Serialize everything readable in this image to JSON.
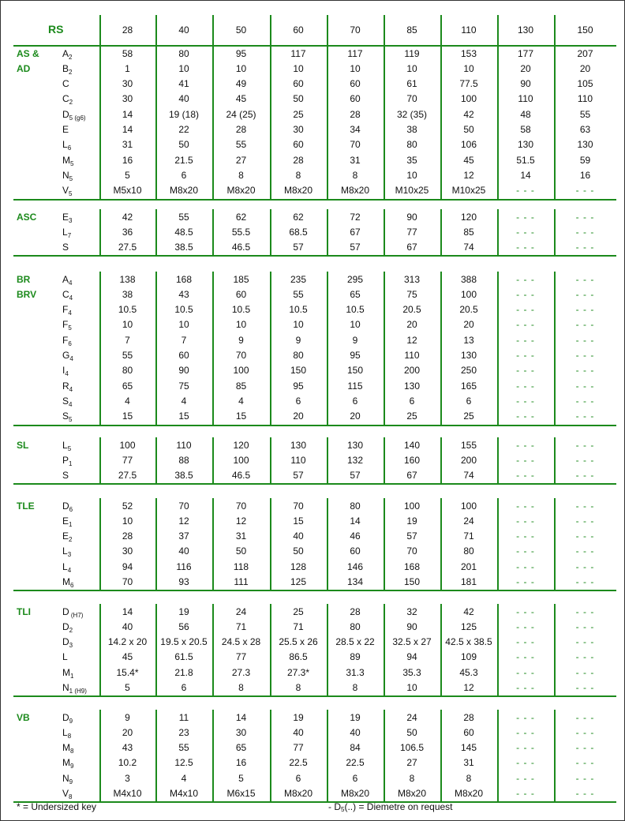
{
  "header": {
    "label": "RS",
    "sizes": [
      "28",
      "40",
      "50",
      "60",
      "70",
      "85",
      "110",
      "130",
      "150"
    ]
  },
  "dash": "- - -",
  "sections": [
    {
      "group": [
        "AS &",
        "AD"
      ],
      "rows": [
        {
          "p": "A",
          "s": "2",
          "v": [
            "58",
            "80",
            "95",
            "117",
            "117",
            "119",
            "153",
            "177",
            "207"
          ]
        },
        {
          "p": "B",
          "s": "2",
          "v": [
            "1",
            "10",
            "10",
            "10",
            "10",
            "10",
            "10",
            "20",
            "20"
          ]
        },
        {
          "p": "C",
          "s": "",
          "v": [
            "30",
            "41",
            "49",
            "60",
            "60",
            "61",
            "77.5",
            "90",
            "105"
          ]
        },
        {
          "p": "C",
          "s": "2",
          "v": [
            "30",
            "40",
            "45",
            "50",
            "60",
            "70",
            "100",
            "110",
            "110"
          ]
        },
        {
          "p": "D",
          "s": "5 (g6)",
          "v": [
            "14",
            "19 (18)",
            "24 (25)",
            "25",
            "28",
            "32 (35)",
            "42",
            "48",
            "55"
          ]
        },
        {
          "p": "E",
          "s": "",
          "v": [
            "14",
            "22",
            "28",
            "30",
            "34",
            "38",
            "50",
            "58",
            "63"
          ]
        },
        {
          "p": "L",
          "s": "6",
          "v": [
            "31",
            "50",
            "55",
            "60",
            "70",
            "80",
            "106",
            "130",
            "130"
          ]
        },
        {
          "p": "M",
          "s": "5",
          "v": [
            "16",
            "21.5",
            "27",
            "28",
            "31",
            "35",
            "45",
            "51.5",
            "59"
          ]
        },
        {
          "p": "N",
          "s": "5",
          "v": [
            "5",
            "6",
            "8",
            "8",
            "8",
            "10",
            "12",
            "14",
            "16"
          ]
        },
        {
          "p": "V",
          "s": "5",
          "v": [
            "M5x10",
            "M8x20",
            "M8x20",
            "M8x20",
            "M8x20",
            "M10x25",
            "M10x25",
            "- - -",
            "- - -"
          ]
        }
      ]
    },
    {
      "group": [
        "ASC"
      ],
      "rows": [
        {
          "p": "E",
          "s": "3",
          "v": [
            "42",
            "55",
            "62",
            "62",
            "72",
            "90",
            "120",
            "- - -",
            "- - -"
          ]
        },
        {
          "p": "L",
          "s": "7",
          "v": [
            "36",
            "48.5",
            "55.5",
            "68.5",
            "67",
            "77",
            "85",
            "- - -",
            "- - -"
          ]
        },
        {
          "p": "S",
          "s": "",
          "v": [
            "27.5",
            "38.5",
            "46.5",
            "57",
            "57",
            "67",
            "74",
            "- - -",
            "- - -"
          ]
        }
      ]
    },
    {
      "group": [
        "BR",
        "BRV"
      ],
      "rows": [
        {
          "p": "A",
          "s": "4",
          "v": [
            "138",
            "168",
            "185",
            "235",
            "295",
            "313",
            "388",
            "- - -",
            "- - -"
          ]
        },
        {
          "p": "C",
          "s": "4",
          "v": [
            "38",
            "43",
            "60",
            "55",
            "65",
            "75",
            "100",
            "- - -",
            "- - -"
          ]
        },
        {
          "p": "F",
          "s": "4",
          "v": [
            "10.5",
            "10.5",
            "10.5",
            "10.5",
            "10.5",
            "20.5",
            "20.5",
            "- - -",
            "- - -"
          ]
        },
        {
          "p": "F",
          "s": "5",
          "v": [
            "10",
            "10",
            "10",
            "10",
            "10",
            "20",
            "20",
            "- - -",
            "- - -"
          ]
        },
        {
          "p": "F",
          "s": "6",
          "v": [
            "7",
            "7",
            "9",
            "9",
            "9",
            "12",
            "13",
            "- - -",
            "- - -"
          ]
        },
        {
          "p": "G",
          "s": "4",
          "v": [
            "55",
            "60",
            "70",
            "80",
            "95",
            "110",
            "130",
            "- - -",
            "- - -"
          ]
        },
        {
          "p": "I",
          "s": "4",
          "v": [
            "80",
            "90",
            "100",
            "150",
            "150",
            "200",
            "250",
            "- - -",
            "- - -"
          ]
        },
        {
          "p": "R",
          "s": "4",
          "v": [
            "65",
            "75",
            "85",
            "95",
            "115",
            "130",
            "165",
            "- - -",
            "- - -"
          ]
        },
        {
          "p": "S",
          "s": "4",
          "v": [
            "4",
            "4",
            "4",
            "6",
            "6",
            "6",
            "6",
            "- - -",
            "- - -"
          ]
        },
        {
          "p": "S",
          "s": "5",
          "v": [
            "15",
            "15",
            "15",
            "20",
            "20",
            "25",
            "25",
            "- - -",
            "- - -"
          ]
        }
      ]
    },
    {
      "group": [
        "SL"
      ],
      "rows": [
        {
          "p": "L",
          "s": "5",
          "v": [
            "100",
            "110",
            "120",
            "130",
            "130",
            "140",
            "155",
            "- - -",
            "- - -"
          ]
        },
        {
          "p": "P",
          "s": "1",
          "v": [
            "77",
            "88",
            "100",
            "110",
            "132",
            "160",
            "200",
            "- - -",
            "- - -"
          ]
        },
        {
          "p": "S",
          "s": "",
          "v": [
            "27.5",
            "38.5",
            "46.5",
            "57",
            "57",
            "67",
            "74",
            "- - -",
            "- - -"
          ]
        }
      ]
    },
    {
      "group": [
        "TLE"
      ],
      "rows": [
        {
          "p": "D",
          "s": "6",
          "v": [
            "52",
            "70",
            "70",
            "70",
            "80",
            "100",
            "100",
            "- - -",
            "- - -"
          ]
        },
        {
          "p": "E",
          "s": "1",
          "v": [
            "10",
            "12",
            "12",
            "15",
            "14",
            "19",
            "24",
            "- - -",
            "- - -"
          ]
        },
        {
          "p": "E",
          "s": "2",
          "v": [
            "28",
            "37",
            "31",
            "40",
            "46",
            "57",
            "71",
            "- - -",
            "- - -"
          ]
        },
        {
          "p": "L",
          "s": "3",
          "v": [
            "30",
            "40",
            "50",
            "50",
            "60",
            "70",
            "80",
            "- - -",
            "- - -"
          ]
        },
        {
          "p": "L",
          "s": "4",
          "v": [
            "94",
            "116",
            "118",
            "128",
            "146",
            "168",
            "201",
            "- - -",
            "- - -"
          ]
        },
        {
          "p": "M",
          "s": "6",
          "v": [
            "70",
            "93",
            "111",
            "125",
            "134",
            "150",
            "181",
            "- - -",
            "- - -"
          ]
        }
      ]
    },
    {
      "group": [
        "TLI"
      ],
      "rows": [
        {
          "p": "D",
          "s": " (H7)",
          "v": [
            "14",
            "19",
            "24",
            "25",
            "28",
            "32",
            "42",
            "- - -",
            "- - -"
          ]
        },
        {
          "p": "D",
          "s": "2",
          "v": [
            "40",
            "56",
            "71",
            "71",
            "80",
            "90",
            "125",
            "- - -",
            "- - -"
          ]
        },
        {
          "p": "D",
          "s": "3",
          "v": [
            "14.2 x 20",
            "19.5 x 20.5",
            "24.5 x 28",
            "25.5 x 26",
            "28.5 x 22",
            "32.5 x 27",
            "42.5 x 38.5",
            "- - -",
            "- - -"
          ]
        },
        {
          "p": "L",
          "s": "",
          "v": [
            "45",
            "61.5",
            "77",
            "86.5",
            "89",
            "94",
            "109",
            "- - -",
            "- - -"
          ]
        },
        {
          "p": "M",
          "s": "1",
          "v": [
            "15.4*",
            "21.8",
            "27.3",
            "27.3*",
            "31.3",
            "35.3",
            "45.3",
            "- - -",
            "- - -"
          ]
        },
        {
          "p": "N",
          "s": "1 (H9)",
          "v": [
            "5",
            "6",
            "8",
            "8",
            "8",
            "10",
            "12",
            "- - -",
            "- - -"
          ]
        }
      ]
    },
    {
      "group": [
        "VB"
      ],
      "rows": [
        {
          "p": "D",
          "s": "9",
          "v": [
            "9",
            "11",
            "14",
            "19",
            "19",
            "24",
            "28",
            "- - -",
            "- - -"
          ]
        },
        {
          "p": "L",
          "s": "8",
          "v": [
            "20",
            "23",
            "30",
            "40",
            "40",
            "50",
            "60",
            "- - -",
            "- - -"
          ]
        },
        {
          "p": "M",
          "s": "8",
          "v": [
            "43",
            "55",
            "65",
            "77",
            "84",
            "106.5",
            "145",
            "- - -",
            "- - -"
          ]
        },
        {
          "p": "M",
          "s": "9",
          "v": [
            "10.2",
            "12.5",
            "16",
            "22.5",
            "22.5",
            "27",
            "31",
            "- - -",
            "- - -"
          ]
        },
        {
          "p": "N",
          "s": "9",
          "v": [
            "3",
            "4",
            "5",
            "6",
            "6",
            "8",
            "8",
            "- - -",
            "- - -"
          ]
        },
        {
          "p": "V",
          "s": "8",
          "v": [
            "M4x10",
            "M4x10",
            "M6x15",
            "M8x20",
            "M8x20",
            "M8x20",
            "M8x20",
            "- - -",
            "- - -"
          ]
        }
      ]
    }
  ],
  "footer": {
    "note_left": "*  = Undersized key",
    "note_right_prefix": "- D",
    "note_right_sub": "5",
    "note_right_suffix": "(..) = Diemetre on request"
  },
  "colors": {
    "accent": "#1c8a1c"
  }
}
